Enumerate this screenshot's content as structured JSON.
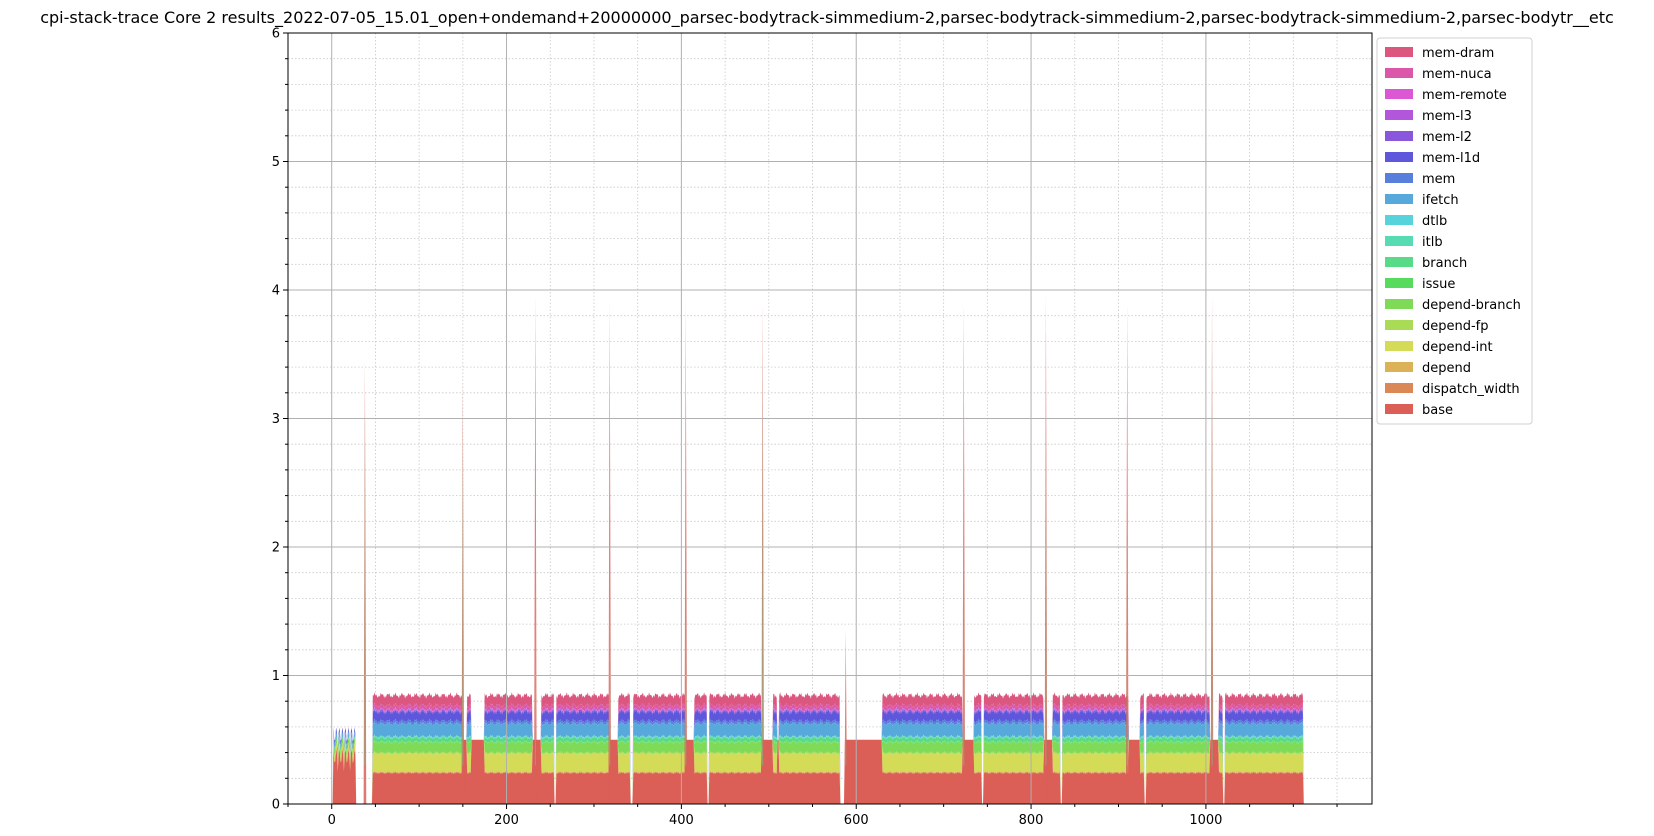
{
  "chart_data": {
    "type": "area",
    "title": "cpi-stack-trace Core 2 results_2022-07-05_15.01_open+ondemand+20000000_parsec-bodytrack-simmedium-2,parsec-bodytrack-simmedium-2,parsec-bodytrack-simmedium-2,parsec-bodytr__etc",
    "xlabel": "",
    "ylabel": "",
    "xlim": [
      -50,
      1190
    ],
    "ylim": [
      0,
      6
    ],
    "x_ticks": [
      0,
      200,
      400,
      600,
      800,
      1000
    ],
    "y_ticks": [
      0,
      1,
      2,
      3,
      4,
      5,
      6
    ],
    "grid": true,
    "minor_grid": true,
    "legend_position": "top-right outside",
    "series": [
      {
        "name": "base",
        "color": "#db5f57",
        "steady": 0.24
      },
      {
        "name": "dispatch_width",
        "color": "#db8857",
        "steady": 0.005
      },
      {
        "name": "depend",
        "color": "#dbb257",
        "steady": 0.005
      },
      {
        "name": "depend-int",
        "color": "#d3db57",
        "steady": 0.14
      },
      {
        "name": "depend-fp",
        "color": "#a9db57",
        "steady": 0.01
      },
      {
        "name": "depend-branch",
        "color": "#7fdb57",
        "steady": 0.08
      },
      {
        "name": "issue",
        "color": "#57db5f",
        "steady": 0.005
      },
      {
        "name": "branch",
        "color": "#57db88",
        "steady": 0.03
      },
      {
        "name": "itlb",
        "color": "#57dbb2",
        "steady": 0.005
      },
      {
        "name": "dtlb",
        "color": "#57d3db",
        "steady": 0.005
      },
      {
        "name": "ifetch",
        "color": "#57a9db",
        "steady": 0.1
      },
      {
        "name": "mem",
        "color": "#577fdb",
        "steady": 0.02
      },
      {
        "name": "mem-l1d",
        "color": "#5f57db",
        "steady": 0.07
      },
      {
        "name": "mem-l2",
        "color": "#8857db",
        "steady": 0.01
      },
      {
        "name": "mem-l3",
        "color": "#b257db",
        "steady": 0.005
      },
      {
        "name": "mem-remote",
        "color": "#db57d3",
        "steady": 0.005
      },
      {
        "name": "mem-nuca",
        "color": "#db57a9",
        "steady": 0.03
      },
      {
        "name": "mem-dram",
        "color": "#db577f",
        "steady": 0.08
      }
    ],
    "active_segments": [
      [
        47,
        150
      ],
      [
        155,
        160
      ],
      [
        175,
        230
      ],
      [
        240,
        255
      ],
      [
        257,
        318
      ],
      [
        328,
        342
      ],
      [
        345,
        405
      ],
      [
        415,
        430
      ],
      [
        432,
        492
      ],
      [
        505,
        510
      ],
      [
        512,
        582
      ],
      [
        630,
        722
      ],
      [
        735,
        744
      ],
      [
        746,
        815
      ],
      [
        825,
        834
      ],
      [
        836,
        912
      ],
      [
        925,
        930
      ],
      [
        932,
        1005
      ],
      [
        1015,
        1020
      ],
      [
        1022,
        1112
      ]
    ],
    "low_segments": [
      [
        150,
        155
      ],
      [
        160,
        175
      ],
      [
        230,
        240
      ],
      [
        318,
        328
      ],
      [
        405,
        415
      ],
      [
        492,
        505
      ],
      [
        510,
        512
      ],
      [
        587,
        630
      ],
      [
        722,
        735
      ],
      [
        815,
        825
      ],
      [
        912,
        925
      ],
      [
        1005,
        1015
      ]
    ],
    "startup_segment": [
      2,
      28
    ],
    "spikes": [
      {
        "x": 38,
        "y": 3.45
      },
      {
        "x": 150,
        "y": 3.3
      },
      {
        "x": 233,
        "y": 3.95
      },
      {
        "x": 318,
        "y": 3.9
      },
      {
        "x": 405,
        "y": 3.9
      },
      {
        "x": 493,
        "y": 3.9
      },
      {
        "x": 588,
        "y": 1.35
      },
      {
        "x": 723,
        "y": 3.9
      },
      {
        "x": 817,
        "y": 3.95
      },
      {
        "x": 910,
        "y": 3.9
      },
      {
        "x": 1007,
        "y": 3.95
      }
    ]
  }
}
